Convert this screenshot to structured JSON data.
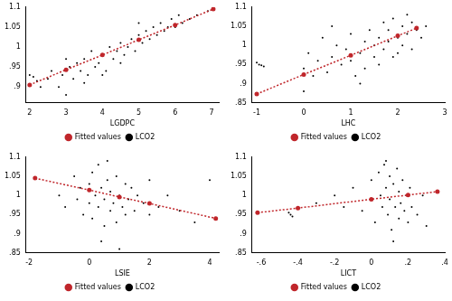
{
  "chart_data": [
    {
      "type": "scatter",
      "xlabel": "LGDPC",
      "xlim": [
        1.9,
        7.2
      ],
      "xticks": [
        2,
        3,
        4,
        5,
        6,
        7
      ],
      "ylim": [
        0.86,
        1.1
      ],
      "yticks": [
        {
          "value": 0.9,
          "label": ".9"
        },
        {
          "value": 0.95,
          "label": ".95"
        },
        1,
        1.05,
        1.1
      ],
      "grid": false,
      "legend": "bottom",
      "series": [
        {
          "name": "LCO2",
          "color": "#000000",
          "marker": "circle",
          "x": [
            2.0,
            2.1,
            2.2,
            2.3,
            2.5,
            2.6,
            2.8,
            2.9,
            3.0,
            3.1,
            3.2,
            3.3,
            3.4,
            3.5,
            3.6,
            3.7,
            3.8,
            3.9,
            4.0,
            4.1,
            4.2,
            4.3,
            4.4,
            4.5,
            4.6,
            4.7,
            4.8,
            4.9,
            5.0,
            5.1,
            5.2,
            5.3,
            5.4,
            5.5,
            5.6,
            5.7,
            5.8,
            5.9,
            6.0,
            6.1,
            6.2,
            6.4,
            6.6,
            6.9,
            7.05,
            3.0,
            4.0,
            4.5,
            5.0,
            3.5
          ],
          "values": [
            0.93,
            0.925,
            0.915,
            0.9,
            0.92,
            0.94,
            0.9,
            0.93,
            0.88,
            0.95,
            0.92,
            0.96,
            0.94,
            0.97,
            0.93,
            0.99,
            0.95,
            0.96,
            0.98,
            0.94,
            1.0,
            0.97,
            0.99,
            1.01,
            0.98,
            1.0,
            1.02,
            0.99,
            1.03,
            1.01,
            1.04,
            1.02,
            1.05,
            1.03,
            1.06,
            1.04,
            1.05,
            1.07,
            1.05,
            1.08,
            1.06,
            1.07,
            1.08,
            1.09,
            1.095,
            0.97,
            0.93,
            0.96,
            1.06,
            0.91
          ]
        },
        {
          "name": "Fitted values",
          "color": "#c0262b",
          "type": "line",
          "line_style": "dotted",
          "marker": "circle",
          "x": [
            2,
            3,
            4,
            5,
            6,
            7.05
          ],
          "values": [
            0.905,
            0.943,
            0.98,
            1.018,
            1.055,
            1.095
          ]
        }
      ]
    },
    {
      "type": "scatter",
      "xlabel": "LHC",
      "xlim": [
        -1.1,
        3
      ],
      "xticks": [
        -1,
        0,
        1,
        2,
        3
      ],
      "ylim": [
        0.85,
        1.1
      ],
      "yticks": [
        {
          "value": 0.85,
          "label": ".85"
        },
        {
          "value": 0.9,
          "label": ".9"
        },
        {
          "value": 0.95,
          "label": ".95"
        },
        1,
        1.05,
        1.1
      ],
      "grid": false,
      "legend": "bottom",
      "series": [
        {
          "name": "LCO2",
          "color": "#000000",
          "marker": "circle",
          "x": [
            -1.0,
            -0.95,
            -0.9,
            -0.85,
            0.0,
            0.1,
            0.2,
            0.3,
            0.4,
            0.5,
            0.6,
            0.7,
            0.8,
            0.9,
            1.0,
            1.0,
            1.1,
            1.2,
            1.3,
            1.3,
            1.4,
            1.5,
            1.5,
            1.6,
            1.6,
            1.7,
            1.7,
            1.8,
            1.8,
            1.9,
            1.9,
            2.0,
            2.0,
            2.1,
            2.1,
            2.2,
            2.2,
            2.3,
            2.3,
            2.4,
            2.5,
            0.0,
            1.2,
            2.6,
            0.6
          ],
          "values": [
            0.955,
            0.95,
            0.948,
            0.945,
            0.94,
            0.98,
            0.92,
            0.96,
            1.02,
            0.93,
            0.97,
            1.0,
            0.95,
            0.99,
            0.96,
            1.03,
            0.92,
            0.98,
            1.01,
            0.94,
            1.04,
            0.97,
            1.0,
            1.02,
            0.95,
            1.06,
            0.99,
            1.01,
            1.04,
            0.97,
            1.07,
            1.02,
            0.98,
            1.05,
            1.0,
            1.08,
            1.03,
            0.99,
            1.06,
            1.04,
            1.02,
            0.88,
            0.9,
            1.05,
            1.05
          ]
        },
        {
          "name": "Fitted values",
          "color": "#c0262b",
          "type": "line",
          "line_style": "dotted",
          "marker": "circle",
          "x": [
            -1,
            0,
            1,
            2,
            2.4
          ],
          "values": [
            0.873,
            0.924,
            0.974,
            1.025,
            1.045
          ]
        }
      ]
    },
    {
      "type": "scatter",
      "xlabel": "LSIE",
      "xlim": [
        -2.1,
        4.3
      ],
      "xticks": [
        -2,
        0,
        2,
        4
      ],
      "ylim": [
        0.85,
        1.1
      ],
      "yticks": [
        {
          "value": 0.85,
          "label": ".85"
        },
        {
          "value": 0.9,
          "label": ".9"
        },
        {
          "value": 0.95,
          "label": ".95"
        },
        1,
        1.05,
        1.1
      ],
      "grid": false,
      "legend": "bottom",
      "series": [
        {
          "name": "LCO2",
          "color": "#000000",
          "marker": "circle",
          "x": [
            -1.0,
            -0.8,
            -0.5,
            -0.4,
            -0.3,
            -0.2,
            0,
            0,
            0.1,
            0.1,
            0.2,
            0.3,
            0.3,
            0.4,
            0.5,
            0.5,
            0.6,
            0.7,
            0.7,
            0.8,
            0.9,
            0.9,
            1.0,
            1.1,
            1.2,
            1.2,
            1.3,
            1.4,
            1.5,
            1.6,
            1.8,
            2.0,
            2.0,
            2.3,
            2.6,
            3.0,
            3.5,
            4.0,
            4.2,
            0.4,
            1.0,
            0.6
          ],
          "values": [
            1.0,
            0.97,
            1.05,
            0.99,
            1.02,
            0.95,
            1.03,
            0.98,
            1.06,
            0.94,
            1.0,
            1.08,
            0.97,
            1.02,
            0.99,
            0.92,
            1.04,
            0.96,
            1.01,
            0.98,
            1.05,
            0.93,
            1.0,
            0.97,
            1.03,
            0.95,
            0.99,
            1.02,
            0.96,
            1.0,
            0.98,
            0.95,
            1.04,
            0.97,
            1.0,
            0.96,
            0.93,
            1.04,
            0.94,
            0.88,
            0.86,
            1.09
          ]
        },
        {
          "name": "Fitted values",
          "color": "#c0262b",
          "type": "line",
          "line_style": "dotted",
          "marker": "circle",
          "x": [
            -1.8,
            0,
            1,
            2,
            4.2
          ],
          "values": [
            1.045,
            1.014,
            0.996,
            0.979,
            0.94
          ]
        }
      ]
    },
    {
      "type": "scatter",
      "xlabel": "LICT",
      "xlim": [
        -0.65,
        0.4
      ],
      "xticks": [
        {
          "value": -0.6,
          "label": "-.6"
        },
        {
          "value": -0.4,
          "label": "-.4"
        },
        {
          "value": -0.2,
          "label": "-.2"
        },
        0,
        {
          "value": 0.2,
          "label": ".2"
        },
        {
          "value": 0.4,
          "label": ".4"
        }
      ],
      "ylim": [
        0.85,
        1.1
      ],
      "yticks": [
        {
          "value": 0.85,
          "label": ".85"
        },
        {
          "value": 0.9,
          "label": ".9"
        },
        {
          "value": 0.95,
          "label": ".95"
        },
        1,
        1.05,
        1.1
      ],
      "grid": false,
      "legend": "bottom",
      "series": [
        {
          "name": "LCO2",
          "color": "#000000",
          "marker": "circle",
          "x": [
            -0.45,
            -0.44,
            -0.43,
            -0.3,
            -0.2,
            -0.15,
            -0.1,
            -0.05,
            0.0,
            0.0,
            0.02,
            0.04,
            0.05,
            0.06,
            0.07,
            0.08,
            0.09,
            0.1,
            0.1,
            0.11,
            0.12,
            0.13,
            0.14,
            0.15,
            0.15,
            0.16,
            0.17,
            0.18,
            0.19,
            0.2,
            0.21,
            0.22,
            0.25,
            0.28,
            0.12,
            0.08,
            0.3
          ],
          "values": [
            0.955,
            0.95,
            0.945,
            0.98,
            1.0,
            0.97,
            1.02,
            0.96,
            1.04,
            0.99,
            0.93,
            1.06,
            1.0,
            0.97,
            1.08,
            1.02,
            0.95,
            1.05,
            0.99,
            0.91,
            1.03,
            0.97,
            1.07,
            1.01,
            0.94,
            0.98,
            1.04,
            0.96,
            1.0,
            0.93,
            1.02,
            0.97,
            0.95,
            1.0,
            0.88,
            1.09,
            0.92
          ]
        },
        {
          "name": "Fitted values",
          "color": "#c0262b",
          "type": "line",
          "line_style": "dotted",
          "marker": "circle",
          "x": [
            -0.62,
            -0.4,
            0,
            0.2,
            0.36
          ],
          "values": [
            0.955,
            0.967,
            0.99,
            1.001,
            1.01
          ]
        }
      ]
    }
  ]
}
